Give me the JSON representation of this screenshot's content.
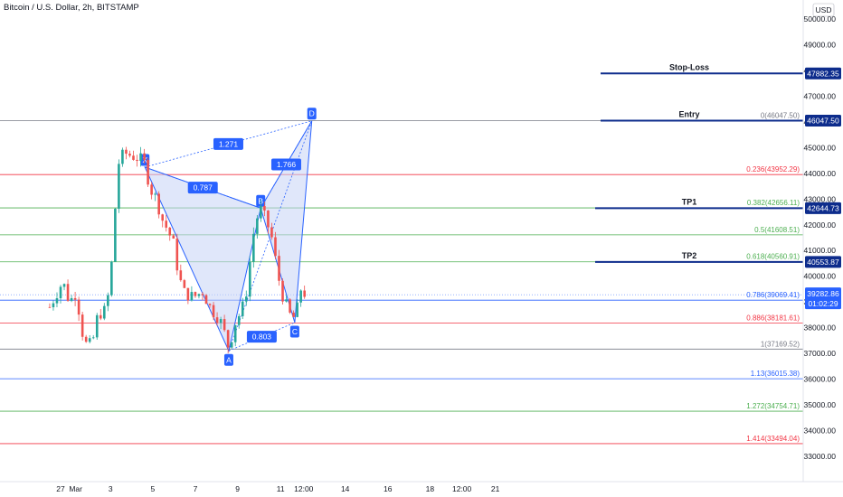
{
  "header": {
    "title": "Bitcoin / U.S. Dollar, 2h, BITSTAMP",
    "currency": "USD"
  },
  "colors": {
    "up": "#26a69a",
    "down": "#ef5350",
    "pattern": "#2962ff",
    "pattern_fill": "#c7d3f5",
    "navy": "#0d2c8c",
    "fib_red": "#f23645",
    "fib_green": "#4caf50",
    "fib_blue": "#2962ff",
    "fib_gray": "#787b86"
  },
  "chart_data": {
    "type": "candlestick",
    "y_axis": {
      "range": [
        32500,
        50300
      ],
      "ticks": [
        33000,
        34000,
        35000,
        36000,
        37000,
        38000,
        39000,
        40000,
        41000,
        42000,
        43000,
        44000,
        45000,
        46000,
        47000,
        48000,
        49000,
        50000
      ],
      "tick_labels": [
        "33000.00",
        "34000.00",
        "35000.00",
        "36000.00",
        "37000.00",
        "38000.00",
        "39000.00",
        "40000.00",
        "41000.00",
        "42000.00",
        "43000.00",
        "44000.00",
        "45000.00",
        "46000.00",
        "47000.00",
        "48000.00",
        "49000.00",
        "50000.00"
      ]
    },
    "x_axis": {
      "ticks": [
        {
          "label": "27",
          "t": 0.25
        },
        {
          "label": "Mar",
          "t": 0.595
        },
        {
          "label": "3",
          "t": 1.395
        },
        {
          "label": "5",
          "t": 2.36
        },
        {
          "label": "7",
          "t": 3.335
        },
        {
          "label": "9",
          "t": 4.3
        },
        {
          "label": "11",
          "t": 5.285
        },
        {
          "label": "12:00",
          "t": 5.815
        },
        {
          "label": "14",
          "t": 6.765
        },
        {
          "label": "16",
          "t": 7.74
        },
        {
          "label": "18",
          "t": 8.705
        },
        {
          "label": "12:00",
          "t": 9.435
        },
        {
          "label": "21",
          "t": 10.2
        }
      ]
    },
    "price_path": [
      [
        0,
        38800
      ],
      [
        0.3,
        39800
      ],
      [
        0.45,
        39000
      ],
      [
        0.62,
        39400
      ],
      [
        0.7,
        38200
      ],
      [
        0.8,
        37400
      ],
      [
        0.9,
        37300
      ],
      [
        1.0,
        37600
      ],
      [
        1.1,
        38500
      ],
      [
        1.2,
        38600
      ],
      [
        1.3,
        38700
      ],
      [
        1.45,
        41000
      ],
      [
        1.55,
        44300
      ],
      [
        1.7,
        44800
      ],
      [
        1.85,
        44700
      ],
      [
        2.0,
        44600
      ],
      [
        2.15,
        44500
      ],
      [
        2.2,
        44200
      ],
      [
        2.3,
        43400
      ],
      [
        2.45,
        43000
      ],
      [
        2.55,
        42300
      ],
      [
        2.7,
        41800
      ],
      [
        2.85,
        41200
      ],
      [
        2.95,
        40000
      ],
      [
        3.1,
        39300
      ],
      [
        3.3,
        39200
      ],
      [
        3.5,
        39400
      ],
      [
        3.7,
        38700
      ],
      [
        3.9,
        38300
      ],
      [
        4.0,
        37800
      ],
      [
        4.1,
        37200
      ],
      [
        4.25,
        38200
      ],
      [
        4.4,
        38700
      ],
      [
        4.5,
        39400
      ],
      [
        4.6,
        40800
      ],
      [
        4.7,
        42100
      ],
      [
        4.83,
        42600
      ],
      [
        4.95,
        42200
      ],
      [
        5.1,
        41400
      ],
      [
        5.2,
        40300
      ],
      [
        5.3,
        39400
      ],
      [
        5.45,
        38700
      ],
      [
        5.55,
        38300
      ],
      [
        5.65,
        38600
      ],
      [
        5.75,
        39500
      ],
      [
        5.85,
        39300
      ]
    ],
    "harmonic_pattern": {
      "points": [
        {
          "label": "X",
          "t": 2.18,
          "price": 44240
        },
        {
          "label": "A",
          "t": 4.1,
          "price": 37100
        },
        {
          "label": "B",
          "t": 4.83,
          "price": 42650
        },
        {
          "label": "C",
          "t": 5.61,
          "price": 38200
        },
        {
          "label": "D",
          "t": 6.0,
          "price": 46040
        }
      ],
      "ratios": [
        {
          "label": "1.271",
          "from": "X",
          "to": "D"
        },
        {
          "label": "0.787",
          "from": "X",
          "to": "B"
        },
        {
          "label": "1.766",
          "from": "B",
          "to": "D"
        },
        {
          "label": "0.803",
          "from": "A",
          "to": "C"
        }
      ]
    },
    "fib_levels": [
      {
        "ratio": "0",
        "price": 46047.5,
        "label": "0(46047.50)",
        "color": "gray"
      },
      {
        "ratio": "0.236",
        "price": 43952.29,
        "label": "0.236(43952.29)",
        "color": "red"
      },
      {
        "ratio": "0.382",
        "price": 42656.11,
        "label": "0.382(42656.11)",
        "color": "green"
      },
      {
        "ratio": "0.5",
        "price": 41608.51,
        "label": "0.5(41608.51)",
        "color": "green"
      },
      {
        "ratio": "0.618",
        "price": 40560.91,
        "label": "0.618(40560.91)",
        "color": "green"
      },
      {
        "ratio": "0.786",
        "price": 39069.41,
        "label": "0.786(39069.41)",
        "color": "blue"
      },
      {
        "ratio": "0.886",
        "price": 38181.61,
        "label": "0.886(38181.61)",
        "color": "red"
      },
      {
        "ratio": "1",
        "price": 37169.52,
        "label": "1(37169.52)",
        "color": "gray"
      },
      {
        "ratio": "1.13",
        "price": 36015.38,
        "label": "1.13(36015.38)",
        "color": "blue"
      },
      {
        "ratio": "1.272",
        "price": 34754.71,
        "label": "1.272(34754.71)",
        "color": "green"
      },
      {
        "ratio": "1.414",
        "price": 33494.04,
        "label": "1.414(33494.04)",
        "color": "red"
      }
    ],
    "trade_lines": [
      {
        "label": "Stop-Loss",
        "price": 47882.35,
        "tag": "47882.35"
      },
      {
        "label": "Entry",
        "price": 46047.5,
        "tag": "46047.50"
      },
      {
        "label": "TP1",
        "price": 42644.73,
        "tag": "42644.73"
      },
      {
        "label": "TP2",
        "price": 40553.87,
        "tag": "40553.87"
      }
    ],
    "current_price": {
      "price": 39282.86,
      "tag": "39282.86",
      "countdown": "01:02:29"
    }
  }
}
